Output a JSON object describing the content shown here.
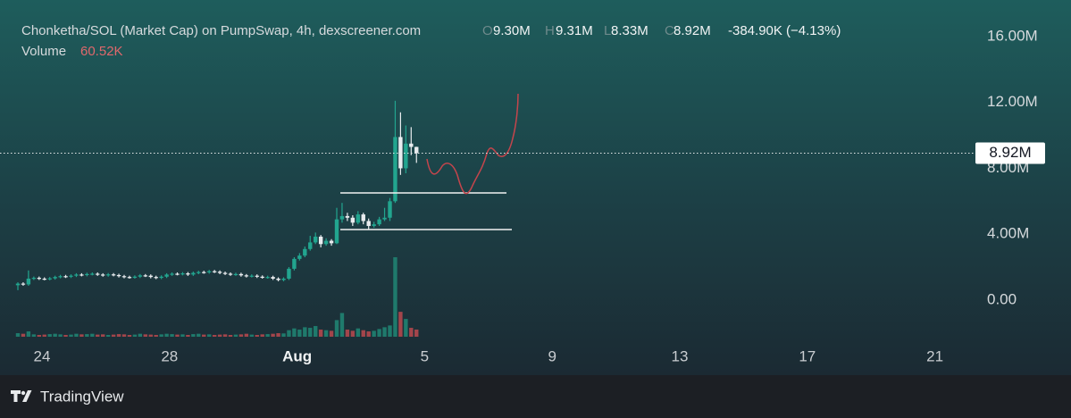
{
  "chart_data": {
    "type": "candlestick",
    "title": "Chonketha/SOL (Market Cap) on PumpSwap, 4h, dexscreener.com",
    "ohlc_legend": [
      {
        "key": "O",
        "value": "9.30M"
      },
      {
        "key": "H",
        "value": "9.31M"
      },
      {
        "key": "L",
        "value": "8.33M"
      },
      {
        "key": "C",
        "value": "8.92M"
      }
    ],
    "change": "-384.90K (−4.13%)",
    "volume_label": "Volume",
    "volume_value": "60.52K",
    "price_label": {
      "value": 8.92,
      "label": "8.92M"
    },
    "ylim": [
      -2.66,
      18.22
    ],
    "yticks": [
      {
        "value": 0,
        "label": "0.00"
      },
      {
        "value": 4,
        "label": "4.00M"
      },
      {
        "value": 8,
        "label": "8.00M"
      },
      {
        "value": 12,
        "label": "12.00M"
      },
      {
        "value": 16,
        "label": "16.00M"
      }
    ],
    "xticks": [
      "24",
      "28",
      "Aug",
      "5",
      "9",
      "13",
      "17",
      "21"
    ],
    "up_color": "#22a58f",
    "down_color": "#e9ecef",
    "volume_up_color": "#1f7a6c",
    "volume_down_color": "#a3454b",
    "open": [
      0.9,
      1.0,
      0.95,
      1.3,
      1.35,
      1.3,
      1.28,
      1.32,
      1.4,
      1.45,
      1.42,
      1.48,
      1.55,
      1.52,
      1.58,
      1.6,
      1.55,
      1.5,
      1.56,
      1.52,
      1.45,
      1.4,
      1.38,
      1.42,
      1.5,
      1.48,
      1.4,
      1.35,
      1.42,
      1.55,
      1.6,
      1.58,
      1.62,
      1.55,
      1.65,
      1.7,
      1.68,
      1.75,
      1.72,
      1.65,
      1.6,
      1.55,
      1.58,
      1.5,
      1.45,
      1.48,
      1.42,
      1.38,
      1.4,
      1.3,
      1.22,
      1.3,
      1.9,
      2.5,
      2.7,
      3.1,
      3.5,
      3.85,
      3.4,
      3.6,
      3.45,
      4.9,
      5.1,
      5.0,
      4.7,
      5.2,
      4.8,
      4.5,
      4.6,
      4.9,
      5.0,
      6.0,
      9.9,
      8.0,
      9.5,
      9.3
    ],
    "high": [
      1.08,
      1.08,
      1.8,
      1.43,
      1.43,
      1.38,
      1.4,
      1.48,
      1.53,
      1.53,
      1.56,
      1.63,
      1.63,
      1.66,
      1.68,
      1.68,
      1.63,
      1.64,
      1.64,
      1.6,
      1.53,
      1.48,
      1.5,
      1.58,
      1.58,
      1.56,
      1.48,
      1.5,
      1.63,
      1.68,
      1.68,
      1.7,
      1.7,
      1.73,
      1.78,
      1.78,
      1.83,
      1.83,
      1.8,
      1.73,
      1.68,
      1.66,
      1.66,
      1.58,
      1.56,
      1.56,
      1.5,
      1.48,
      1.48,
      1.38,
      1.38,
      2.0,
      2.6,
      2.85,
      3.25,
      3.9,
      4.1,
      3.95,
      3.75,
      3.7,
      5.6,
      5.9,
      5.3,
      5.15,
      5.4,
      5.3,
      4.95,
      4.75,
      5.05,
      5.6,
      6.2,
      12.1,
      11.4,
      10.6,
      10.5,
      9.31
    ],
    "low": [
      0.6,
      0.87,
      0.87,
      1.22,
      1.22,
      1.2,
      1.2,
      1.24,
      1.32,
      1.34,
      1.34,
      1.4,
      1.44,
      1.44,
      1.5,
      1.47,
      1.42,
      1.42,
      1.44,
      1.37,
      1.32,
      1.3,
      1.3,
      1.34,
      1.4,
      1.32,
      1.27,
      1.27,
      1.34,
      1.47,
      1.5,
      1.5,
      1.47,
      1.47,
      1.57,
      1.6,
      1.6,
      1.64,
      1.57,
      1.52,
      1.47,
      1.47,
      1.42,
      1.37,
      1.37,
      1.34,
      1.3,
      1.3,
      1.22,
      1.14,
      1.14,
      1.22,
      1.8,
      2.4,
      2.6,
      3.0,
      3.4,
      3.2,
      3.3,
      3.3,
      3.4,
      4.7,
      4.8,
      4.5,
      4.6,
      4.6,
      4.3,
      4.4,
      4.5,
      4.8,
      4.8,
      5.9,
      7.6,
      7.7,
      8.8,
      8.33
    ],
    "close": [
      1.0,
      0.95,
      1.3,
      1.35,
      1.3,
      1.28,
      1.32,
      1.4,
      1.45,
      1.42,
      1.48,
      1.55,
      1.52,
      1.58,
      1.6,
      1.55,
      1.5,
      1.56,
      1.52,
      1.45,
      1.4,
      1.38,
      1.42,
      1.5,
      1.48,
      1.4,
      1.35,
      1.42,
      1.55,
      1.6,
      1.58,
      1.62,
      1.55,
      1.65,
      1.7,
      1.68,
      1.75,
      1.72,
      1.65,
      1.6,
      1.55,
      1.58,
      1.5,
      1.45,
      1.48,
      1.42,
      1.38,
      1.4,
      1.3,
      1.22,
      1.3,
      1.9,
      2.5,
      2.7,
      3.1,
      3.5,
      3.85,
      3.4,
      3.6,
      3.45,
      4.9,
      5.1,
      5.0,
      4.7,
      5.2,
      4.8,
      4.5,
      4.6,
      4.9,
      5.0,
      6.0,
      9.9,
      8.0,
      9.5,
      9.3,
      8.92
    ],
    "volume": [
      30,
      25,
      45,
      20,
      15,
      18,
      22,
      25,
      20,
      15,
      18,
      25,
      20,
      22,
      25,
      18,
      20,
      15,
      18,
      22,
      20,
      15,
      18,
      25,
      20,
      18,
      15,
      20,
      25,
      22,
      18,
      20,
      15,
      22,
      25,
      18,
      20,
      15,
      18,
      20,
      15,
      18,
      20,
      25,
      18,
      15,
      20,
      22,
      25,
      30,
      28,
      55,
      70,
      60,
      80,
      75,
      90,
      60,
      55,
      50,
      140,
      200,
      60,
      50,
      70,
      55,
      45,
      50,
      65,
      80,
      95,
      670,
      210,
      150,
      75,
      60.52
    ],
    "watermark": "TradingView"
  }
}
